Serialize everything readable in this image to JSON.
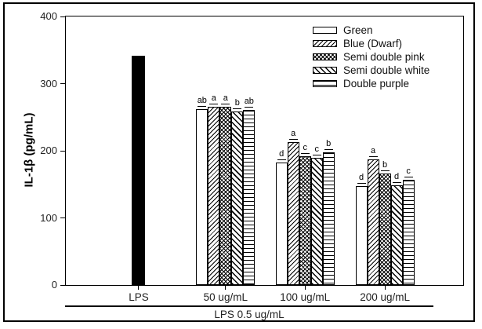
{
  "chart_data": {
    "type": "bar",
    "title": "",
    "ylabel": "IL-1β (pg/mL)",
    "xlabel": "",
    "ylim": [
      0,
      400
    ],
    "yticks": [
      0,
      100,
      200,
      300,
      400
    ],
    "x_tick_labels": [
      "LPS",
      "50 ug/mL",
      "100 ug/mL",
      "200 ug/mL"
    ],
    "x_axis_note": "LPS 0.5 ug/mL",
    "grid": false,
    "legend_position": "top-right-inside",
    "control_bar": {
      "label": "LPS",
      "value": 342,
      "pattern": "solid"
    },
    "categories": [
      "50 ug/mL",
      "100 ug/mL",
      "200 ug/mL"
    ],
    "series": [
      {
        "name": "Green",
        "pattern": "plain",
        "values": [
          262,
          183,
          147
        ],
        "sig_letters": [
          "ab",
          "d",
          "d"
        ]
      },
      {
        "name": "Blue (Dwarf)",
        "pattern": "diag-up",
        "values": [
          265,
          213,
          187
        ],
        "sig_letters": [
          "a",
          "a",
          "a"
        ]
      },
      {
        "name": "Semi double pink",
        "pattern": "crosshatch",
        "values": [
          265,
          192,
          166
        ],
        "sig_letters": [
          "a",
          "c",
          "b"
        ]
      },
      {
        "name": "Semi double white",
        "pattern": "diag-down",
        "values": [
          258,
          189,
          149
        ],
        "sig_letters": [
          "b",
          "c",
          "d"
        ]
      },
      {
        "name": "Double purple",
        "pattern": "hlines",
        "values": [
          261,
          198,
          157
        ],
        "sig_letters": [
          "ab",
          "b",
          "c"
        ]
      }
    ],
    "colors": {
      "bar_fill": "#ffffff",
      "bar_border": "#000000",
      "control_fill": "#000000",
      "text": "#1a1a1a"
    }
  }
}
